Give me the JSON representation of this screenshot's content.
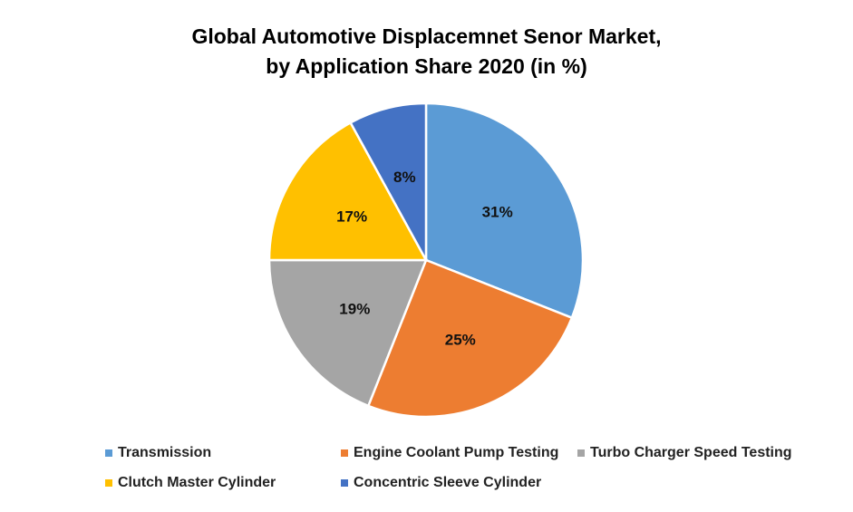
{
  "chart_data": {
    "type": "pie",
    "title_line1": "Global Automotive Displacemnet Senor Market,",
    "title_line2": "by Application Share 2020 (in %)",
    "categories": [
      "Transmission",
      "Engine Coolant Pump Testing",
      "Turbo Charger Speed Testing",
      "Clutch Master Cylinder",
      "Concentric Sleeve Cylinder"
    ],
    "values": [
      31,
      25,
      19,
      17,
      8
    ],
    "data_labels": [
      "31%",
      "25%",
      "19%",
      "17%",
      "8%"
    ],
    "colors": [
      "#5B9BD5",
      "#ED7D31",
      "#A5A5A5",
      "#FFC000",
      "#4472C4"
    ],
    "start_angle": "12 o'clock, clockwise",
    "legend_position": "bottom"
  }
}
